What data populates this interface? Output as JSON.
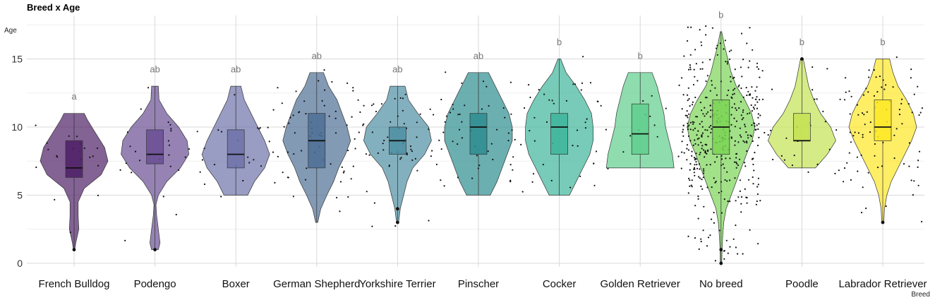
{
  "chart_data": {
    "type": "violin",
    "title": "Breed x Age",
    "xlabel": "Breed",
    "ylabel": "Age",
    "ylim": [
      0,
      17.5
    ],
    "yticks": [
      0,
      5,
      10,
      15
    ],
    "grid": true,
    "legend": "none",
    "categories": [
      "French Bulldog",
      "Podengo",
      "Boxer",
      "German Shepherd",
      "Yorkshire Terrier",
      "Pinscher",
      "Cocker",
      "Golden Retriever",
      "No breed",
      "Poodle",
      "Labrador Retriever"
    ],
    "significance_letters": [
      "a",
      "ab",
      "ab",
      "ab",
      "ab",
      "ab",
      "b",
      "b",
      "b",
      "b",
      "b"
    ],
    "colors": [
      "#4f1f66",
      "#6a4e94",
      "#6d72a9",
      "#4e6f96",
      "#4f8fa3",
      "#2d8d8f",
      "#3db59a",
      "#5fcf8d",
      "#7bd455",
      "#c3e252",
      "#fde725"
    ],
    "box": [
      {
        "q1": 6.3,
        "median": 7.0,
        "q3": 9.0,
        "min": 1,
        "max": 11
      },
      {
        "q1": 7.3,
        "median": 8.0,
        "q3": 9.8,
        "min": 1,
        "max": 13
      },
      {
        "q1": 7.0,
        "median": 8.0,
        "q3": 9.8,
        "min": 5,
        "max": 13
      },
      {
        "q1": 7.0,
        "median": 9.0,
        "q3": 11.0,
        "min": 3,
        "max": 14
      },
      {
        "q1": 8.0,
        "median": 9.0,
        "q3": 10.0,
        "min": 3,
        "max": 13
      },
      {
        "q1": 8.0,
        "median": 10.0,
        "q3": 11.0,
        "min": 5,
        "max": 14
      },
      {
        "q1": 8.0,
        "median": 10.0,
        "q3": 11.0,
        "min": 5,
        "max": 15
      },
      {
        "q1": 8.0,
        "median": 9.5,
        "q3": 11.7,
        "min": 7,
        "max": 14
      },
      {
        "q1": 8.0,
        "median": 10.0,
        "q3": 12.0,
        "min": 0,
        "max": 17
      },
      {
        "q1": 9.0,
        "median": 9.0,
        "q3": 11.0,
        "min": 7,
        "max": 15
      },
      {
        "q1": 9.0,
        "median": 10.0,
        "q3": 12.0,
        "min": 3,
        "max": 15
      }
    ],
    "outliers": [
      [
        1
      ],
      [
        1
      ],
      [],
      [],
      [
        3,
        4
      ],
      [],
      [],
      [],
      [
        0,
        1
      ],
      [
        15
      ],
      [
        3
      ]
    ],
    "violin_profiles": [
      [
        [
          1,
          0.02
        ],
        [
          1.5,
          0.05
        ],
        [
          2.5,
          0.14
        ],
        [
          3.5,
          0.12
        ],
        [
          4.5,
          0.12
        ],
        [
          5.5,
          0.3
        ],
        [
          6.5,
          0.8
        ],
        [
          7.5,
          1.0
        ],
        [
          8.5,
          0.9
        ],
        [
          9.5,
          0.65
        ],
        [
          10.5,
          0.4
        ],
        [
          11,
          0.3
        ]
      ],
      [
        [
          1,
          0.1
        ],
        [
          1.5,
          0.15
        ],
        [
          2.5,
          0.1
        ],
        [
          3.5,
          0.05
        ],
        [
          4.3,
          0.03
        ],
        [
          5.0,
          0.1
        ],
        [
          6.0,
          0.35
        ],
        [
          7.0,
          0.75
        ],
        [
          8.0,
          1.0
        ],
        [
          9.0,
          0.95
        ],
        [
          10.0,
          0.7
        ],
        [
          11.0,
          0.35
        ],
        [
          12.0,
          0.12
        ],
        [
          13,
          0.1
        ]
      ],
      [
        [
          5,
          0.35
        ],
        [
          6,
          0.55
        ],
        [
          7,
          0.85
        ],
        [
          8,
          1.0
        ],
        [
          9,
          0.85
        ],
        [
          10,
          0.65
        ],
        [
          11,
          0.45
        ],
        [
          12,
          0.25
        ],
        [
          13,
          0.15
        ]
      ],
      [
        [
          3,
          0.03
        ],
        [
          4,
          0.12
        ],
        [
          5,
          0.3
        ],
        [
          6,
          0.5
        ],
        [
          7,
          0.65
        ],
        [
          8,
          0.85
        ],
        [
          9,
          1.0
        ],
        [
          10,
          0.9
        ],
        [
          11,
          0.75
        ],
        [
          12,
          0.6
        ],
        [
          13,
          0.35
        ],
        [
          14,
          0.2
        ]
      ],
      [
        [
          3,
          0.03
        ],
        [
          4,
          0.08
        ],
        [
          5,
          0.18
        ],
        [
          6,
          0.28
        ],
        [
          7,
          0.45
        ],
        [
          8,
          0.8
        ],
        [
          9,
          1.0
        ],
        [
          10,
          0.92
        ],
        [
          11,
          0.6
        ],
        [
          12,
          0.32
        ],
        [
          13,
          0.22
        ]
      ],
      [
        [
          5,
          0.35
        ],
        [
          6,
          0.55
        ],
        [
          7,
          0.7
        ],
        [
          8,
          0.85
        ],
        [
          9,
          1.0
        ],
        [
          10,
          1.0
        ],
        [
          11,
          0.9
        ],
        [
          12,
          0.7
        ],
        [
          13,
          0.5
        ],
        [
          14,
          0.3
        ]
      ],
      [
        [
          5,
          0.3
        ],
        [
          6,
          0.5
        ],
        [
          7,
          0.7
        ],
        [
          8,
          0.9
        ],
        [
          9,
          1.0
        ],
        [
          10,
          1.0
        ],
        [
          11,
          0.95
        ],
        [
          12,
          0.75
        ],
        [
          13,
          0.5
        ],
        [
          14,
          0.2
        ],
        [
          15,
          0.04
        ]
      ],
      [
        [
          7,
          1.0
        ],
        [
          8,
          0.95
        ],
        [
          9,
          0.85
        ],
        [
          10,
          0.75
        ],
        [
          11,
          0.7
        ],
        [
          12,
          0.6
        ],
        [
          13,
          0.5
        ],
        [
          14,
          0.35
        ]
      ],
      [
        [
          0,
          0.02
        ],
        [
          1,
          0.03
        ],
        [
          2,
          0.05
        ],
        [
          3,
          0.08
        ],
        [
          4,
          0.15
        ],
        [
          5,
          0.3
        ],
        [
          6,
          0.45
        ],
        [
          7,
          0.6
        ],
        [
          8,
          0.75
        ],
        [
          9,
          0.92
        ],
        [
          10,
          1.0
        ],
        [
          11,
          0.9
        ],
        [
          12,
          0.7
        ],
        [
          13,
          0.45
        ],
        [
          14,
          0.3
        ],
        [
          15,
          0.2
        ],
        [
          16,
          0.1
        ],
        [
          17,
          0.02
        ]
      ],
      [
        [
          7,
          0.4
        ],
        [
          8,
          0.75
        ],
        [
          9,
          1.0
        ],
        [
          10,
          0.85
        ],
        [
          11,
          0.55
        ],
        [
          12,
          0.35
        ],
        [
          13,
          0.2
        ],
        [
          14,
          0.12
        ],
        [
          15,
          0.04
        ]
      ],
      [
        [
          3,
          0.03
        ],
        [
          4,
          0.05
        ],
        [
          5,
          0.12
        ],
        [
          6,
          0.25
        ],
        [
          7,
          0.45
        ],
        [
          8,
          0.65
        ],
        [
          9,
          0.85
        ],
        [
          10,
          1.0
        ],
        [
          11,
          0.9
        ],
        [
          12,
          0.7
        ],
        [
          13,
          0.45
        ],
        [
          14,
          0.3
        ],
        [
          15,
          0.2
        ]
      ]
    ],
    "jitter_point_counts": [
      20,
      25,
      25,
      60,
      60,
      50,
      40,
      15,
      420,
      30,
      90
    ]
  }
}
